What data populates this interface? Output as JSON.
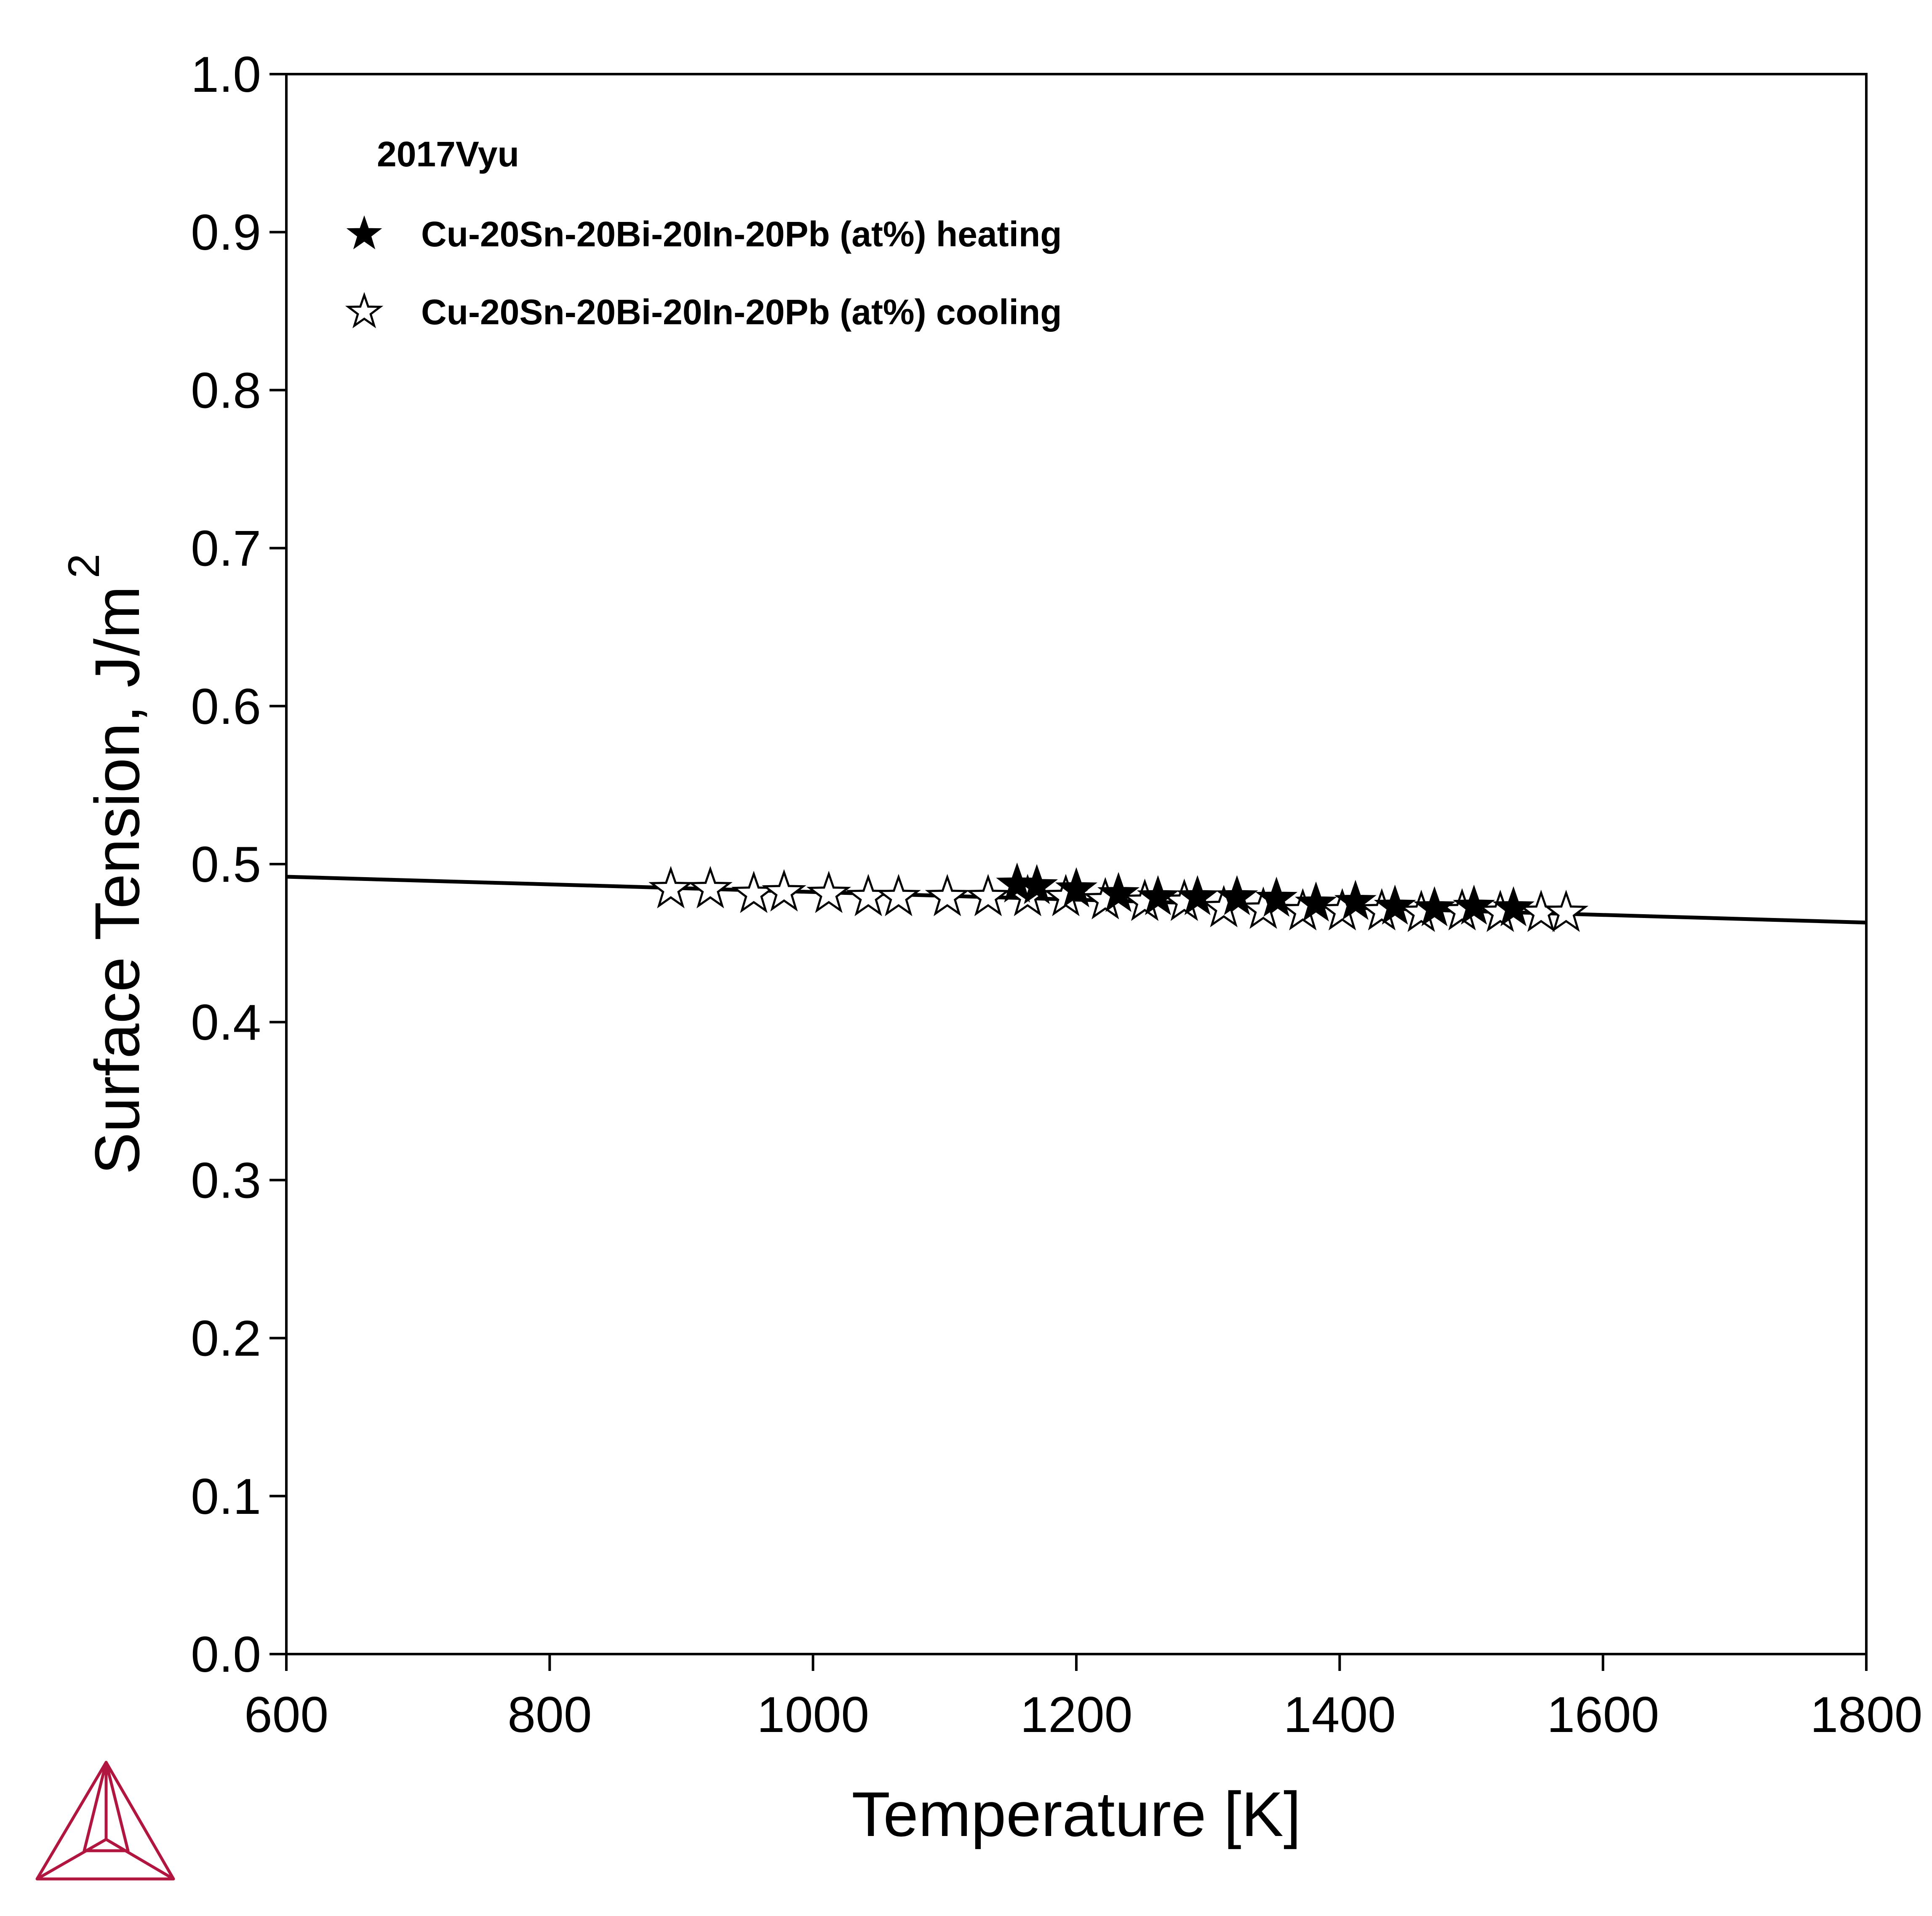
{
  "chart_data": {
    "type": "scatter",
    "xlabel": "Temperature [K]",
    "ylabel": "Surface Tension, J/m",
    "ylabel_superscript": "2",
    "xlim": [
      600,
      1800
    ],
    "ylim": [
      0,
      1.0
    ],
    "xticks": [
      "600",
      "800",
      "1000",
      "1200",
      "1400",
      "1600",
      "1800"
    ],
    "yticks": [
      "0.0",
      "0.1",
      "0.2",
      "0.3",
      "0.4",
      "0.5",
      "0.6",
      "0.7",
      "0.8",
      "0.9",
      "1.0"
    ],
    "grid": false,
    "legend": {
      "position": "top-left",
      "title": "2017Vyu",
      "entries": [
        {
          "label": "Cu-20Sn-20Bi-20In-20Pb (at%) heating",
          "marker": "filled-star"
        },
        {
          "label": "Cu-20Sn-20Bi-20In-20Pb (at%) cooling",
          "marker": "open-star"
        }
      ]
    },
    "line": {
      "x": [
        600,
        1800
      ],
      "y": [
        0.492,
        0.463
      ],
      "color": "#000000"
    },
    "series": [
      {
        "name": "Cu-20Sn-20Bi-20In-20Pb (at%) heating",
        "marker": "filled-star",
        "x": [
          1155,
          1170,
          1200,
          1232,
          1262,
          1292,
          1322,
          1352,
          1382,
          1412,
          1442,
          1472,
          1502,
          1532
        ],
        "y": [
          0.487,
          0.486,
          0.484,
          0.481,
          0.479,
          0.479,
          0.479,
          0.478,
          0.475,
          0.476,
          0.473,
          0.472,
          0.473,
          0.472
        ]
      },
      {
        "name": "Cu-20Sn-20Bi-20In-20Pb (at%) cooling",
        "marker": "open-star",
        "x": [
          892,
          922,
          955,
          978,
          1012,
          1042,
          1065,
          1102,
          1133,
          1163,
          1192,
          1222,
          1252,
          1282,
          1312,
          1342,
          1372,
          1402,
          1432,
          1462,
          1493,
          1522,
          1553,
          1572
        ],
        "y": [
          0.484,
          0.484,
          0.481,
          0.482,
          0.481,
          0.479,
          0.479,
          0.479,
          0.479,
          0.479,
          0.479,
          0.477,
          0.476,
          0.476,
          0.472,
          0.471,
          0.47,
          0.47,
          0.47,
          0.469,
          0.47,
          0.469,
          0.469,
          0.469
        ]
      }
    ]
  },
  "colors": {
    "axis": "#000000",
    "logo": "#b0163f",
    "background": "#ffffff"
  },
  "logo_icon": "thermo-calc-triangle-logo"
}
